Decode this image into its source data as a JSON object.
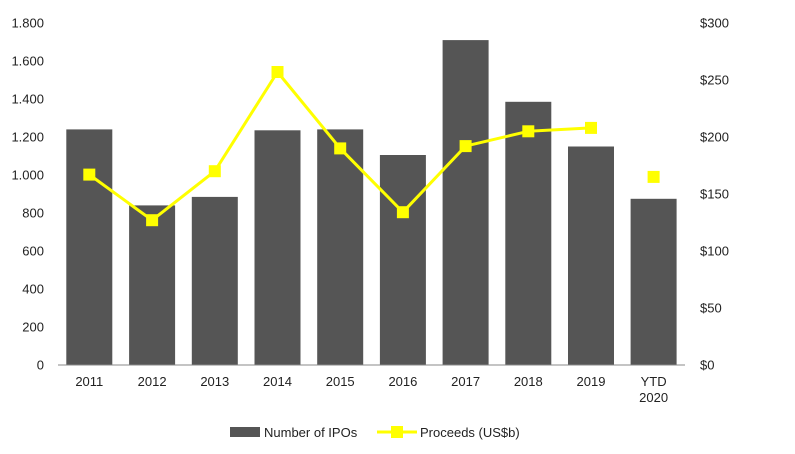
{
  "chart_data": {
    "type": "bar",
    "categories": [
      "2011",
      "2012",
      "2013",
      "2014",
      "2015",
      "2016",
      "2017",
      "2018",
      "2019",
      "YTD 2020"
    ],
    "series": [
      {
        "name": "Number of IPOs",
        "type": "bar",
        "axis": "left",
        "color": "#555555",
        "values": [
          1240,
          840,
          885,
          1235,
          1240,
          1105,
          1710,
          1385,
          1150,
          875
        ]
      },
      {
        "name": "Proceeds (US$b)",
        "type": "line",
        "axis": "right",
        "color": "#ffff00",
        "values": [
          167,
          127,
          170,
          257,
          190,
          134,
          192,
          205,
          208,
          null
        ]
      },
      {
        "type": "scatter",
        "axis": "right",
        "color": "#ffff00",
        "values": [
          null,
          null,
          null,
          null,
          null,
          null,
          null,
          null,
          null,
          165
        ]
      }
    ],
    "y_left": {
      "ylim": [
        0,
        1800
      ],
      "ticks": [
        0,
        200,
        400,
        600,
        800,
        1000,
        1200,
        1400,
        1600,
        1800
      ],
      "tick_labels": [
        "0",
        "200",
        "400",
        "600",
        "800",
        "1.000",
        "1.200",
        "1.400",
        "1.600",
        "1.800"
      ]
    },
    "y_right": {
      "ylim": [
        0,
        300
      ],
      "ticks": [
        0,
        50,
        100,
        150,
        200,
        250,
        300
      ],
      "tick_labels": [
        "$0",
        "$50",
        "$100",
        "$150",
        "$200",
        "$250",
        "$300"
      ]
    },
    "x_tick_labels": [
      [
        "2011"
      ],
      [
        "2012"
      ],
      [
        "2013"
      ],
      [
        "2014"
      ],
      [
        "2015"
      ],
      [
        "2016"
      ],
      [
        "2017"
      ],
      [
        "2018"
      ],
      [
        "2019"
      ],
      [
        "YTD",
        "2020"
      ]
    ],
    "legend": {
      "position": "bottom-center",
      "items": [
        "Number of IPOs",
        "Proceeds (US$b)"
      ]
    },
    "grid": false
  }
}
